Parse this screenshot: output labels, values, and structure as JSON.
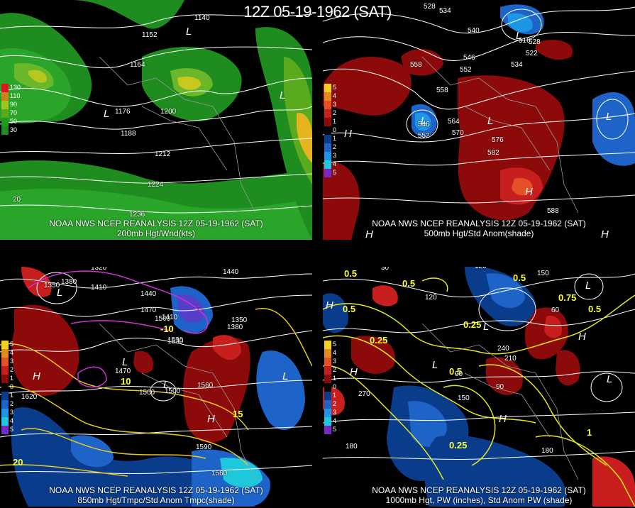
{
  "title": "12Z 05-19-1962 (SAT)",
  "panels": [
    {
      "caption1": "NOAA NWS NCEP REANALYSIS 12Z 05-19-1962 (SAT)",
      "caption2": "200mb Hgt/Wnd(kts)",
      "legend": [
        "130",
        "110",
        "90",
        "70",
        "50",
        "30"
      ],
      "legend_colors": [
        "#e0141e",
        "#c8821e",
        "#9cc81e",
        "#5aaa1e",
        "#1e9a1e",
        "#1e8c1e"
      ],
      "contour_labels": [
        "1140",
        "1152",
        "1164",
        "1176",
        "1188",
        "1200",
        "1212",
        "1224",
        "1236",
        "20"
      ],
      "high_low": [
        "L",
        "L",
        "L"
      ]
    },
    {
      "caption1": "NOAA NWS NCEP REANALYSIS 12Z 05-19-1962 (SAT)",
      "caption2": "500mb Hgt/Std Anom(shade)",
      "legend": [
        "5",
        "4",
        "3",
        "2",
        "1",
        "0",
        "1",
        "2",
        "3",
        "4",
        "5"
      ],
      "legend_colors": [
        "#f0d21e",
        "#e08c1e",
        "#e65028",
        "#c81e1e",
        "#8c0a0a",
        "#000000",
        "#0a3c8c",
        "#1e64c8",
        "#1e96e6",
        "#1ec8dc",
        "#7828c8"
      ],
      "contour_labels": [
        "528",
        "534",
        "540",
        "516",
        "522",
        "528",
        "534",
        "546",
        "552",
        "558",
        "558",
        "546",
        "552",
        "564",
        "570",
        "576",
        "582",
        "588"
      ],
      "high_low": [
        "L",
        "L",
        "L",
        "L",
        "H",
        "H",
        "H",
        "H"
      ]
    },
    {
      "caption1": "NOAA NWS NCEP REANALYSIS 12Z 05-19-1962 (SAT)",
      "caption2": "850mb Hgt/Tmpc/Std Anom Tmpc(shade)",
      "legend": [
        "5",
        "4",
        "3",
        "2",
        "1",
        "0",
        "1",
        "2",
        "3",
        "4",
        "5"
      ],
      "legend_colors": [
        "#f0d21e",
        "#e08c1e",
        "#e65028",
        "#c81e1e",
        "#8c0a0a",
        "#000000",
        "#0a3c8c",
        "#1e64c8",
        "#1e96e6",
        "#1ec8dc",
        "#7828c8"
      ],
      "contour_labels": [
        "1320",
        "1350",
        "1380",
        "1410",
        "1440",
        "1470",
        "1500",
        "1530",
        "1560",
        "1590",
        "1620",
        "1440",
        "1410",
        "1380",
        "1350",
        "-10",
        "10",
        "15",
        "20",
        "1470",
        "1500",
        "1530",
        "1560",
        "1500"
      ],
      "high_low": [
        "L",
        "H",
        "L",
        "L",
        "H",
        "L"
      ]
    },
    {
      "caption1": "NOAA NWS NCEP REANALYSIS 12Z 05-19-1962 (SAT)",
      "caption2": "1000mb Hgt, PW (inches), Std Anom PW (shade)",
      "legend": [
        "5",
        "4",
        "3",
        "2",
        "1",
        "0",
        "1",
        "2",
        "3",
        "4",
        "5"
      ],
      "legend_colors": [
        "#f0d21e",
        "#e08c1e",
        "#e65028",
        "#c81e1e",
        "#8c0a0a",
        "#000000",
        "#0a3c8c",
        "#1e64c8",
        "#1e96e6",
        "#1ec8dc",
        "#7828c8"
      ],
      "contour_labels": [
        "0.5",
        "0.5",
        "0.5",
        "0.25",
        "0.5",
        "0.25",
        "0.5",
        "0.75",
        "0.25",
        "1",
        "0.5",
        "30",
        "120",
        "120",
        "150",
        "180",
        "180",
        "210",
        "240",
        "270",
        "90",
        "60",
        "90",
        "150"
      ],
      "high_low": [
        "H",
        "H",
        "L",
        "L",
        "L",
        "H",
        "L",
        "H"
      ]
    }
  ]
}
